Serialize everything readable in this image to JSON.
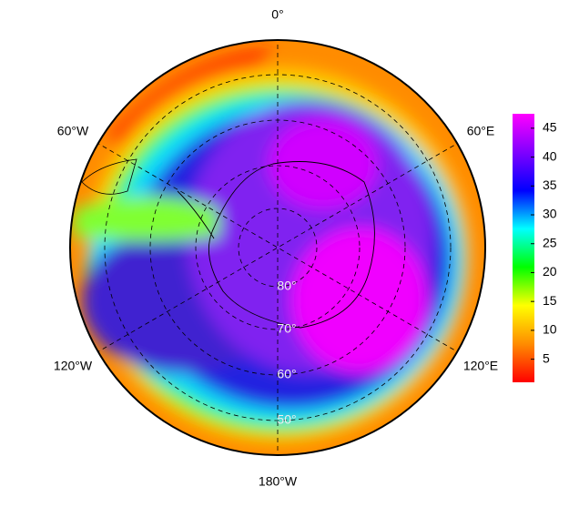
{
  "map": {
    "meridian_labels": [
      "0°",
      "60°E",
      "120°E",
      "180°W",
      "120°W",
      "60°W"
    ],
    "parallel_labels": [
      "80°",
      "70°",
      "60°",
      "50°"
    ]
  },
  "colorbar": {
    "lim": [
      1,
      47.5
    ],
    "ticks": [
      5,
      10,
      15,
      20,
      25,
      30,
      35,
      40,
      45
    ],
    "colors": [
      "#ff0000",
      "#ff8c00",
      "#ffff00",
      "#00ff00",
      "#00ffff",
      "#0000ff",
      "#8000ff",
      "#ff00ff"
    ]
  }
}
